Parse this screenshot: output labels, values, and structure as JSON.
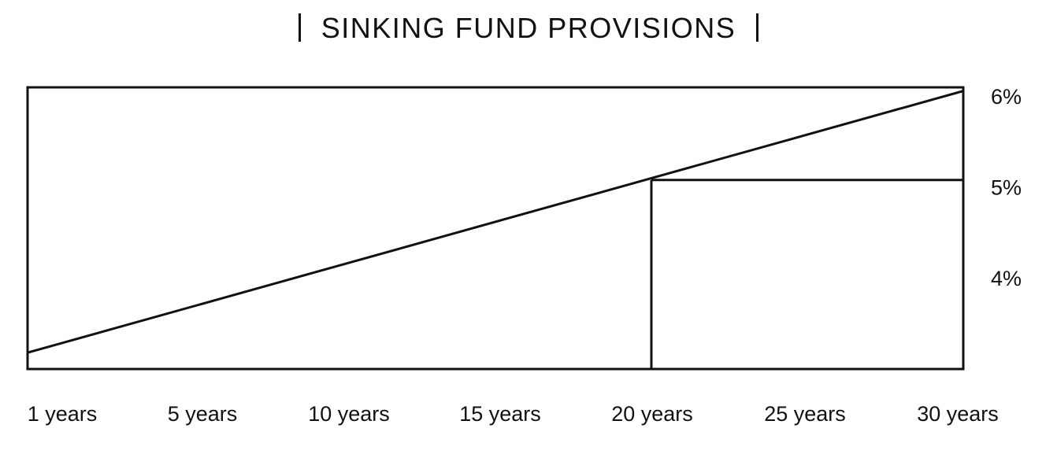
{
  "chart_data": {
    "type": "line",
    "title": "SINKING FUND PROVISIONS",
    "xlabel": "",
    "ylabel": "",
    "x_tick_labels": [
      "1 years",
      "5 years",
      "10 years",
      "15 years",
      "20 years",
      "25 years",
      "30 years"
    ],
    "y_tick_labels": [
      "6%",
      "5%",
      "4%"
    ],
    "y_tick_values": [
      6,
      5,
      4
    ],
    "xlim": [
      0,
      6
    ],
    "ylim": [
      3.0,
      6.1
    ],
    "y_axis_side": "right",
    "grid": false,
    "series": [
      {
        "points": [
          {
            "x": 0,
            "y": 3.18
          },
          {
            "x": 6,
            "y": 6.06
          }
        ]
      }
    ],
    "annotations": [
      {
        "type": "step-box",
        "x_start": 4,
        "x_end": 6,
        "y_top": 5.08
      }
    ],
    "colors": {
      "line": "#111111",
      "background": "#ffffff"
    }
  }
}
